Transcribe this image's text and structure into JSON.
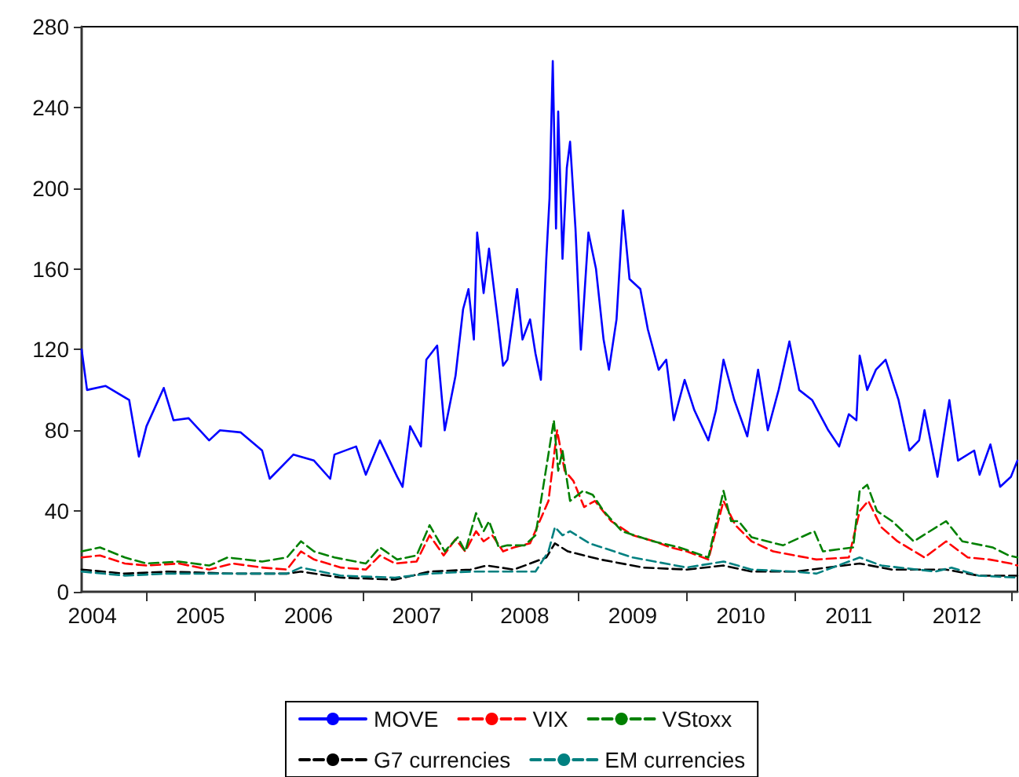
{
  "chart_data": {
    "type": "line",
    "xlim": [
      2004.4,
      2013.06
    ],
    "ylim": [
      0,
      280
    ],
    "yticks": [
      0,
      40,
      80,
      120,
      160,
      200,
      240,
      280
    ],
    "xticks": [
      {
        "value": 2005,
        "label": null
      },
      {
        "value": 2006,
        "label": null
      },
      {
        "value": 2007,
        "label": null
      },
      {
        "value": 2008,
        "label": null
      },
      {
        "value": 2009,
        "label": null
      },
      {
        "value": 2010,
        "label": null
      },
      {
        "value": 2011,
        "label": null
      },
      {
        "value": 2012,
        "label": null
      },
      {
        "value": 2013,
        "label": null
      },
      {
        "value": 2004.5,
        "label": "2004"
      },
      {
        "value": 2005.5,
        "label": "2005"
      },
      {
        "value": 2006.5,
        "label": "2006"
      },
      {
        "value": 2007.5,
        "label": "2007"
      },
      {
        "value": 2008.5,
        "label": "2008"
      },
      {
        "value": 2009.5,
        "label": "2009"
      },
      {
        "value": 2010.5,
        "label": "2010"
      },
      {
        "value": 2011.5,
        "label": "2011"
      },
      {
        "value": 2012.5,
        "label": "2012"
      }
    ],
    "grid": false,
    "legend": "bottom",
    "marker": "none",
    "series": [
      {
        "name": "MOVE",
        "color": "#0000ff",
        "line_style": "solid",
        "x": [
          2004.4,
          2004.45,
          2004.62,
          2004.84,
          2004.93,
          2005.0,
          2005.16,
          2005.25,
          2005.39,
          2005.58,
          2005.68,
          2005.87,
          2006.07,
          2006.14,
          2006.36,
          2006.55,
          2006.7,
          2006.74,
          2006.94,
          2007.03,
          2007.16,
          2007.32,
          2007.37,
          2007.44,
          2007.54,
          2007.59,
          2007.69,
          2007.76,
          2007.86,
          2007.93,
          2007.98,
          2008.03,
          2008.06,
          2008.12,
          2008.17,
          2008.25,
          2008.3,
          2008.34,
          2008.43,
          2008.48,
          2008.55,
          2008.6,
          2008.65,
          2008.7,
          2008.73,
          2008.76,
          2008.79,
          2008.81,
          2008.85,
          2008.89,
          2008.92,
          2008.97,
          2009.02,
          2009.09,
          2009.16,
          2009.23,
          2009.28,
          2009.35,
          2009.41,
          2009.47,
          2009.57,
          2009.64,
          2009.74,
          2009.81,
          2009.88,
          2009.98,
          2010.07,
          2010.2,
          2010.27,
          2010.34,
          2010.44,
          2010.56,
          2010.66,
          2010.75,
          2010.85,
          2010.95,
          2011.04,
          2011.16,
          2011.31,
          2011.41,
          2011.5,
          2011.57,
          2011.6,
          2011.67,
          2011.75,
          2011.84,
          2011.96,
          2012.06,
          2012.15,
          2012.2,
          2012.32,
          2012.43,
          2012.51,
          2012.66,
          2012.71,
          2012.81,
          2012.9,
          2013.0,
          2013.06
        ],
        "values": [
          120,
          100,
          102,
          95,
          67,
          82,
          101,
          85,
          86,
          75,
          80,
          79,
          70,
          56,
          68,
          65,
          56,
          68,
          72,
          58,
          75,
          57,
          52,
          82,
          72,
          115,
          122,
          80,
          107,
          140,
          150,
          125,
          178,
          148,
          170,
          135,
          112,
          115,
          150,
          125,
          135,
          118,
          105,
          165,
          195,
          263,
          180,
          238,
          165,
          210,
          223,
          180,
          120,
          178,
          160,
          125,
          110,
          135,
          189,
          155,
          150,
          130,
          110,
          115,
          85,
          105,
          90,
          75,
          90,
          115,
          95,
          77,
          110,
          80,
          100,
          124,
          100,
          95,
          80,
          72,
          88,
          85,
          117,
          100,
          110,
          115,
          95,
          70,
          75,
          90,
          57,
          95,
          65,
          70,
          58,
          73,
          52,
          57,
          65
        ]
      },
      {
        "name": "VIX",
        "color": "#ff0000",
        "line_style": "dashed",
        "x": [
          2004.4,
          2004.57,
          2004.8,
          2005.0,
          2005.3,
          2005.58,
          2005.8,
          2006.07,
          2006.3,
          2006.43,
          2006.55,
          2006.8,
          2007.03,
          2007.16,
          2007.3,
          2007.5,
          2007.62,
          2007.75,
          2007.86,
          2007.95,
          2008.05,
          2008.12,
          2008.2,
          2008.3,
          2008.4,
          2008.55,
          2008.72,
          2008.8,
          2008.87,
          2008.95,
          2009.05,
          2009.15,
          2009.3,
          2009.5,
          2009.7,
          2009.85,
          2010.0,
          2010.2,
          2010.34,
          2010.45,
          2010.6,
          2010.8,
          2011.0,
          2011.2,
          2011.5,
          2011.6,
          2011.68,
          2011.8,
          2011.95,
          2012.2,
          2012.4,
          2012.6,
          2012.8,
          2013.0,
          2013.06
        ],
        "values": [
          17,
          18,
          14,
          13,
          14,
          11,
          14,
          12,
          11,
          20,
          16,
          12,
          11,
          18,
          14,
          15,
          28,
          18,
          26,
          20,
          30,
          25,
          28,
          20,
          22,
          24,
          45,
          80,
          60,
          55,
          42,
          45,
          35,
          28,
          25,
          22,
          20,
          16,
          45,
          33,
          25,
          20,
          18,
          16,
          17,
          40,
          45,
          32,
          25,
          17,
          25,
          17,
          16,
          14,
          13
        ]
      },
      {
        "name": "VStoxx",
        "color": "#008000",
        "line_style": "dashed",
        "x": [
          2004.4,
          2004.57,
          2004.8,
          2005.0,
          2005.3,
          2005.58,
          2005.75,
          2006.07,
          2006.3,
          2006.43,
          2006.55,
          2006.74,
          2007.03,
          2007.16,
          2007.32,
          2007.5,
          2007.62,
          2007.76,
          2007.88,
          2007.95,
          2008.05,
          2008.12,
          2008.17,
          2008.26,
          2008.34,
          2008.5,
          2008.6,
          2008.77,
          2008.81,
          2008.85,
          2008.92,
          2009.04,
          2009.13,
          2009.23,
          2009.4,
          2009.69,
          2009.93,
          2010.2,
          2010.34,
          2010.41,
          2010.48,
          2010.6,
          2010.89,
          2011.18,
          2011.26,
          2011.54,
          2011.6,
          2011.67,
          2011.76,
          2011.9,
          2012.1,
          2012.4,
          2012.55,
          2012.83,
          2012.98,
          2013.06
        ],
        "values": [
          20,
          22,
          17,
          14,
          15,
          13,
          17,
          15,
          17,
          25,
          20,
          17,
          14,
          22,
          16,
          18,
          33,
          20,
          27,
          20,
          39,
          30,
          35,
          22,
          23,
          23,
          28,
          85,
          60,
          70,
          45,
          50,
          48,
          40,
          30,
          25,
          22,
          17,
          50,
          35,
          35,
          27,
          23,
          30,
          20,
          22,
          50,
          53,
          40,
          35,
          25,
          35,
          25,
          22,
          18,
          17
        ]
      },
      {
        "name": "G7 currencies",
        "color": "#000000",
        "line_style": "dashed",
        "x": [
          2004.4,
          2004.8,
          2005.2,
          2005.8,
          2006.3,
          2006.43,
          2006.8,
          2007.3,
          2007.62,
          2008.0,
          2008.15,
          2008.4,
          2008.7,
          2008.78,
          2008.9,
          2009.2,
          2009.6,
          2010.0,
          2010.34,
          2010.6,
          2011.0,
          2011.6,
          2011.9,
          2012.4,
          2012.7,
          2013.06
        ],
        "values": [
          11,
          9,
          10,
          9,
          9,
          10,
          7,
          6,
          10,
          11,
          13,
          11,
          17,
          24,
          20,
          16,
          12,
          11,
          13,
          10,
          10,
          14,
          11,
          11,
          8,
          8
        ]
      },
      {
        "name": "EM currencies",
        "color": "#008080",
        "line_style": "dashed",
        "x": [
          2004.4,
          2004.8,
          2005.2,
          2005.8,
          2006.3,
          2006.43,
          2006.8,
          2007.3,
          2007.62,
          2008.0,
          2008.3,
          2008.6,
          2008.72,
          2008.78,
          2008.85,
          2008.92,
          2009.1,
          2009.5,
          2010.0,
          2010.34,
          2010.6,
          2011.0,
          2011.2,
          2011.6,
          2011.8,
          2012.3,
          2012.45,
          2012.7,
          2013.06
        ],
        "values": [
          10,
          8,
          9,
          9,
          9,
          12,
          8,
          7,
          9,
          10,
          10,
          10,
          20,
          32,
          28,
          30,
          24,
          17,
          12,
          15,
          11,
          10,
          9,
          17,
          13,
          10,
          12,
          8,
          7
        ]
      }
    ]
  }
}
